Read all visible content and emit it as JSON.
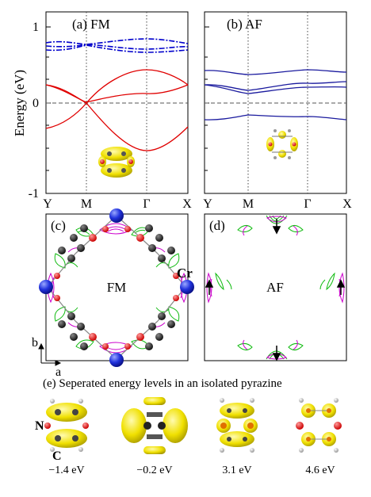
{
  "panel_a": {
    "label": "(a) FM",
    "ylabel": "Energy (eV)",
    "yticks": [
      "1",
      "0",
      "-1"
    ],
    "xticks": [
      "Y",
      "M",
      "Γ",
      "X"
    ],
    "colors": {
      "minority": "#0000cc",
      "majority": "#e00000"
    }
  },
  "panel_b": {
    "label": "(b) AF",
    "xticks": [
      "Y",
      "M",
      "Γ",
      "X"
    ],
    "colors": {
      "bands": "#1a1a9e"
    }
  },
  "panel_c": {
    "label": "(c)",
    "center_label": "FM",
    "atom_label": "Cr",
    "axis_b": "b",
    "axis_a": "a"
  },
  "panel_d": {
    "label": "(d)",
    "center_label": "AF"
  },
  "panel_e": {
    "title": "(e) Seperated energy levels in an isolated pyrazine",
    "atom_labels": {
      "nitrogen": "N",
      "carbon": "C"
    },
    "levels": [
      {
        "energy": "−1.4 eV"
      },
      {
        "energy": "−0.2 eV"
      },
      {
        "energy": "3.1 eV"
      },
      {
        "energy": "4.6 eV"
      }
    ]
  },
  "chart_data": [
    {
      "type": "line",
      "title": "(a) FM",
      "ylabel": "Energy (eV)",
      "ylim": [
        -1,
        1
      ],
      "x_ticks": [
        "Y",
        "M",
        "Γ",
        "X"
      ],
      "series": [
        {
          "values": [
            0.18,
            0.0,
            0.35,
            0.2
          ]
        },
        {
          "values": [
            0.18,
            0.02,
            0.08,
            0.2
          ]
        },
        {
          "values": [
            -0.28,
            0.0,
            -0.52,
            -0.25
          ]
        },
        {
          "values": [
            0.68,
            0.62,
            0.7,
            0.66
          ]
        },
        {
          "values": [
            0.58,
            0.62,
            0.56,
            0.58
          ]
        }
      ]
    },
    {
      "type": "line",
      "title": "(b) AF",
      "ylim": [
        -1,
        1
      ],
      "x_ticks": [
        "Y",
        "M",
        "Γ",
        "X"
      ],
      "series": [
        {
          "values": [
            0.36,
            0.32,
            0.36,
            0.34
          ]
        },
        {
          "values": [
            0.2,
            0.15,
            0.22,
            0.24
          ]
        },
        {
          "values": [
            0.2,
            0.11,
            0.19,
            0.19
          ]
        },
        {
          "values": [
            -0.18,
            -0.13,
            -0.15,
            -0.17
          ]
        }
      ]
    }
  ]
}
